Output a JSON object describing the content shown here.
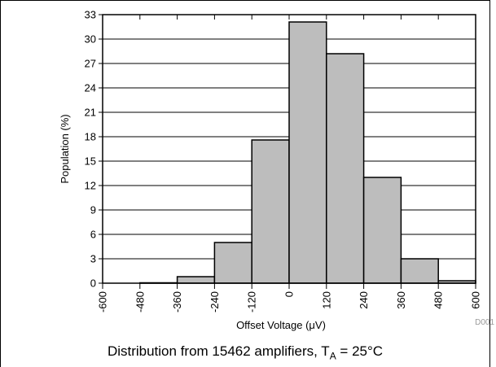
{
  "chart_data": {
    "type": "bar",
    "xlabel": "Offset Voltage (μV)",
    "ylabel": "Population (%)",
    "x_ticks": [
      -600,
      -480,
      -360,
      -240,
      -120,
      0,
      120,
      240,
      360,
      480,
      600
    ],
    "y_ticks": [
      0,
      3,
      6,
      9,
      12,
      15,
      18,
      21,
      24,
      27,
      30,
      33
    ],
    "xlim": [
      -600,
      600
    ],
    "ylim": [
      0,
      33
    ],
    "bin_width": 120,
    "bins": [
      {
        "x": -540,
        "value": 0.0
      },
      {
        "x": -420,
        "value": 0.05
      },
      {
        "x": -300,
        "value": 0.8
      },
      {
        "x": -180,
        "value": 5.0
      },
      {
        "x": -60,
        "value": 17.6
      },
      {
        "x": 60,
        "value": 32.1
      },
      {
        "x": 180,
        "value": 28.2
      },
      {
        "x": 300,
        "value": 13.0
      },
      {
        "x": 420,
        "value": 3.0
      },
      {
        "x": 540,
        "value": 0.3
      }
    ],
    "grid": true,
    "bar_color": "#bdbdbd"
  },
  "caption": {
    "prefix": "Distribution from 15462 amplifiers, T",
    "subscript": "A",
    "suffix": " = 25°C"
  },
  "figure_code": "D001"
}
